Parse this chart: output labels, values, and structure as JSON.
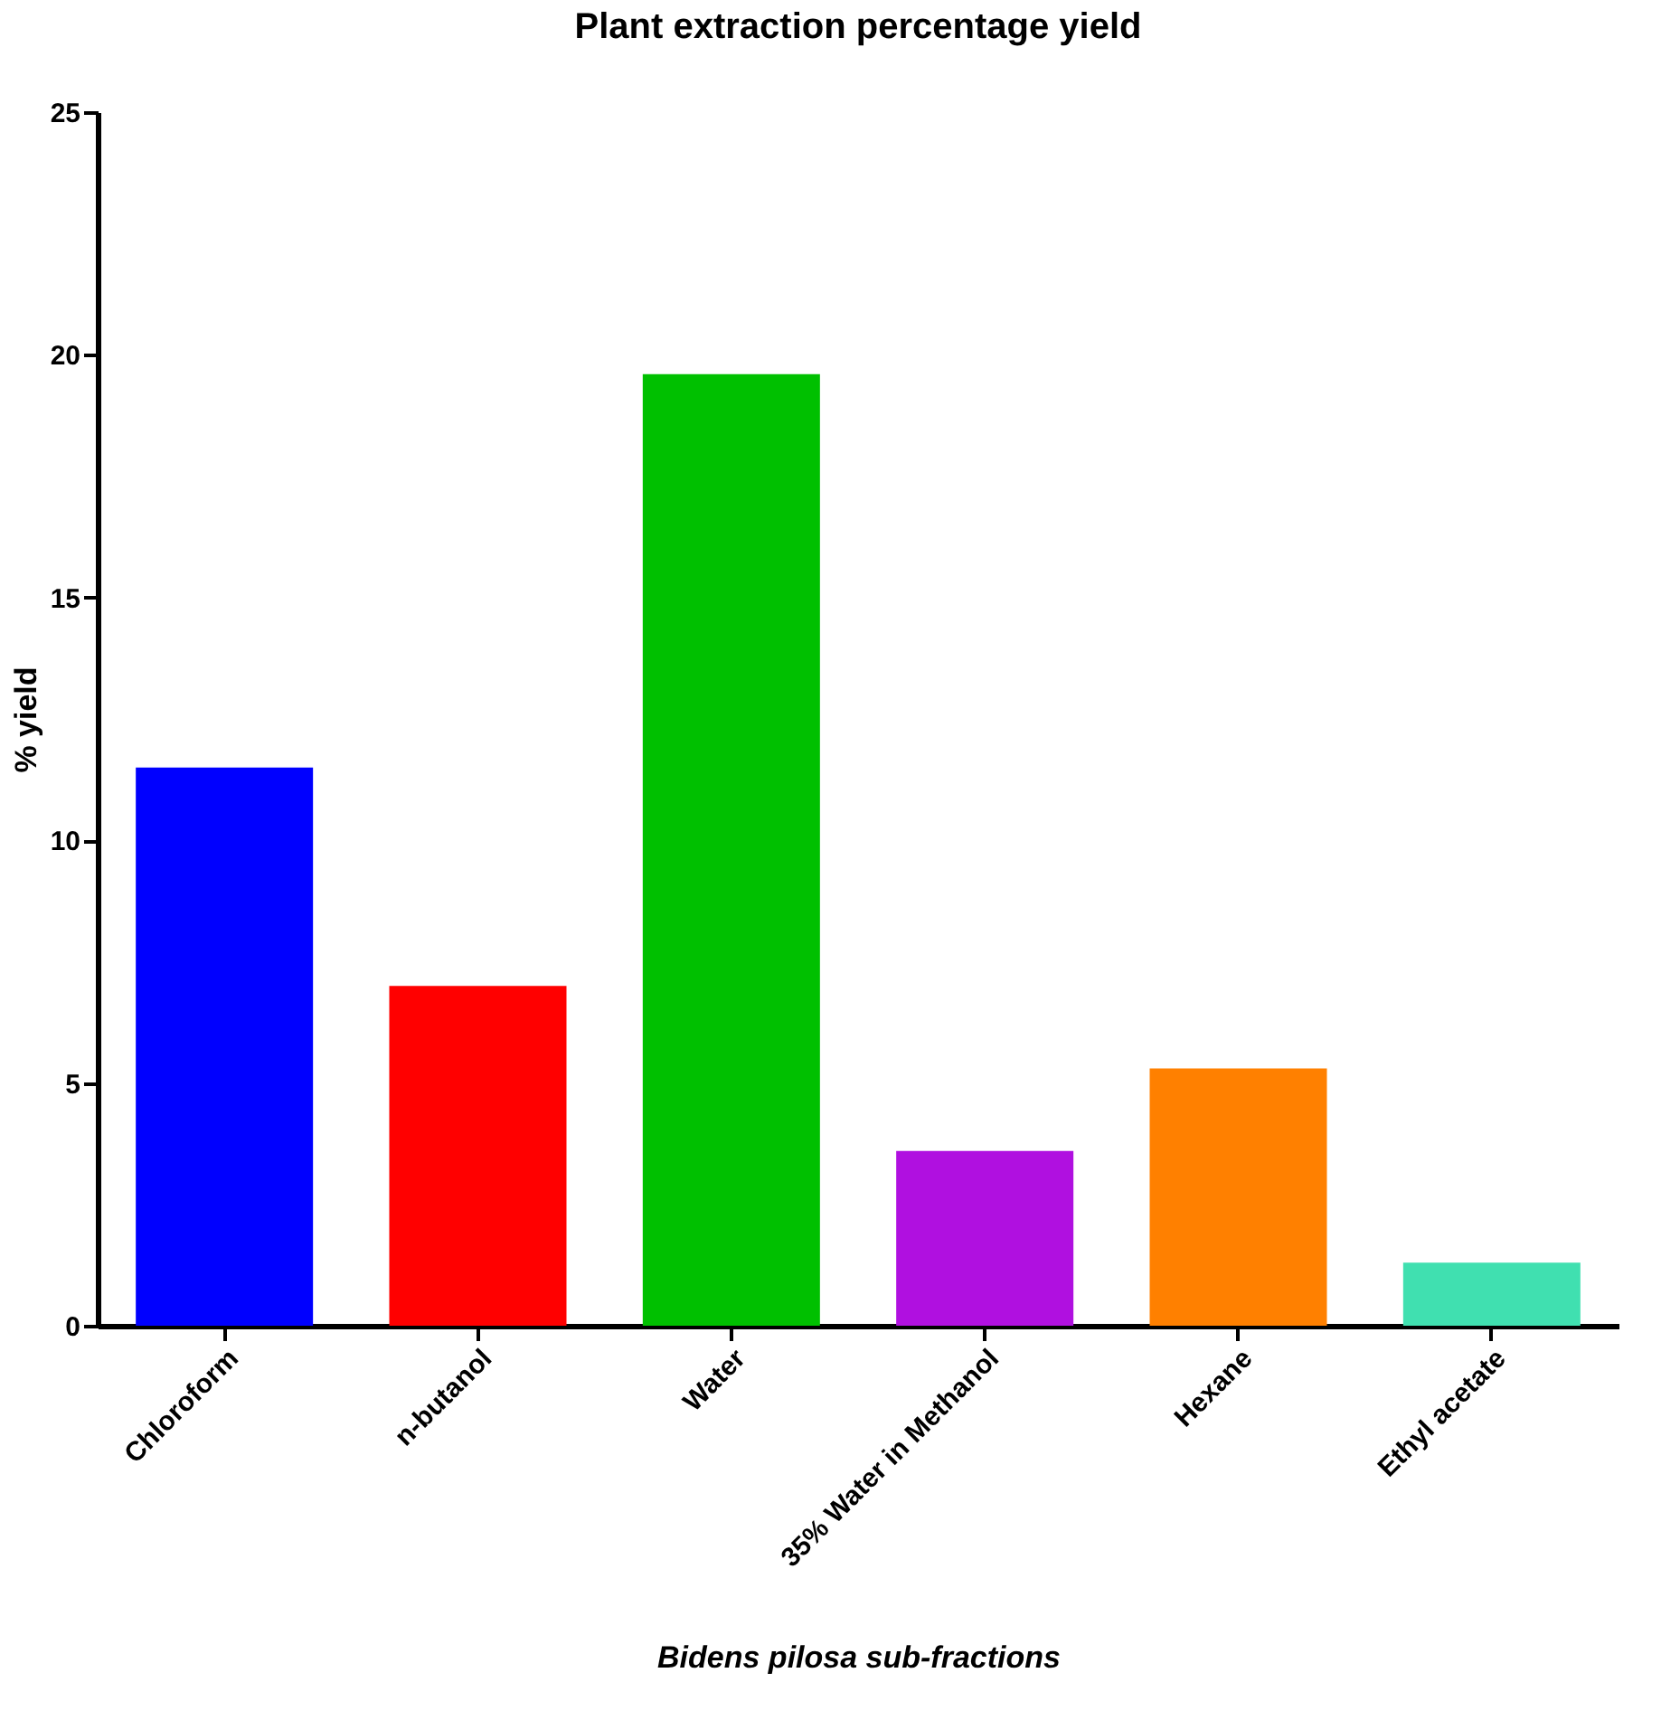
{
  "chart_data": {
    "type": "bar",
    "title": "Plant extraction percentage yield",
    "xlabel": "Bidens pilosa sub-fractions",
    "ylabel": "% yield",
    "categories": [
      "Chloroform",
      "n-butanol",
      "Water",
      "35% Water in Methanol",
      "Hexane",
      "Ethyl acetate"
    ],
    "values": [
      11.5,
      7.0,
      19.6,
      3.6,
      5.3,
      1.3
    ],
    "colors": [
      "#0000ff",
      "#ff0000",
      "#00c000",
      "#b010e0",
      "#ff8000",
      "#40e0b0"
    ],
    "ylim": [
      0,
      25
    ],
    "yticks": [
      0,
      5,
      10,
      15,
      20,
      25
    ],
    "grid": false
  }
}
